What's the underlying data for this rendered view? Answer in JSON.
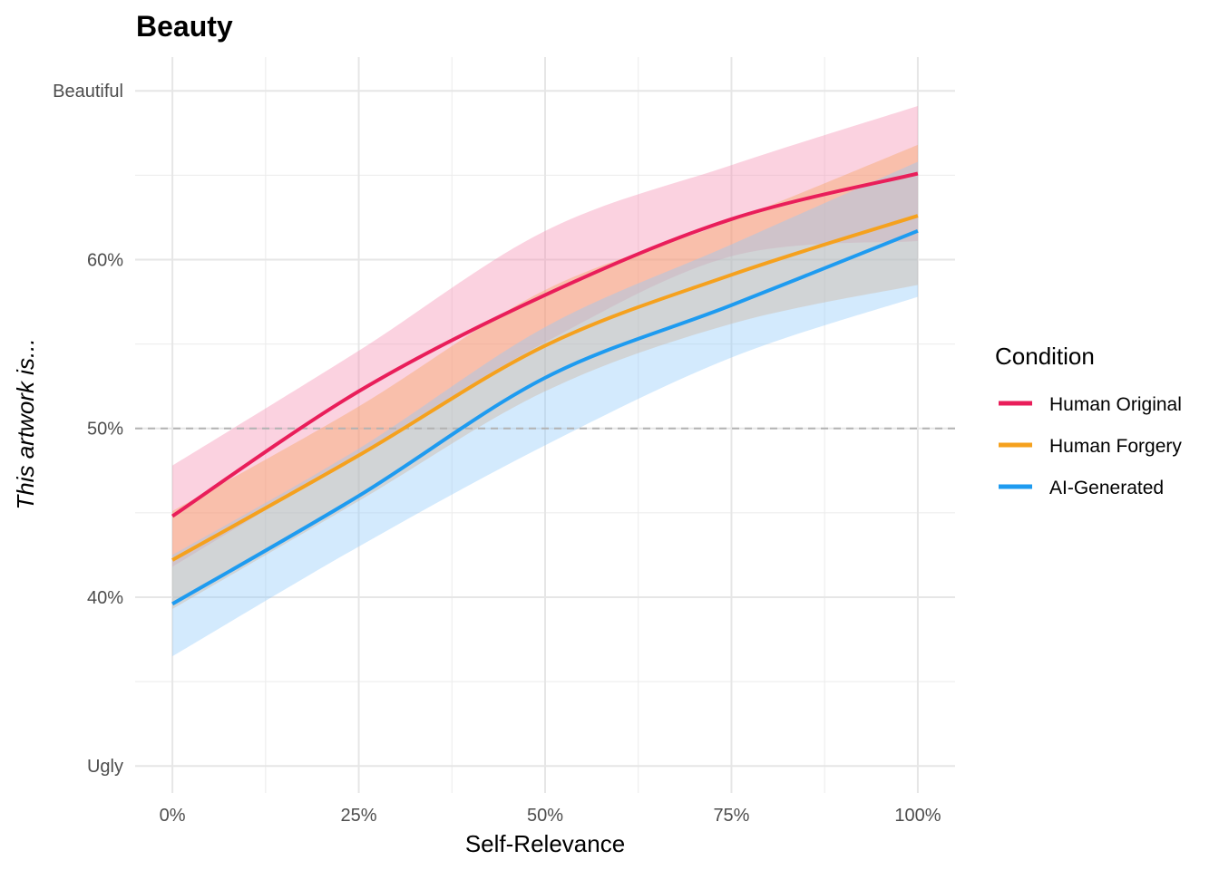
{
  "chart_data": {
    "type": "line",
    "title": "Beauty",
    "xlabel": "Self-Relevance",
    "ylabel": "This artwork is...",
    "xlim": [
      -0.05,
      1.05
    ],
    "ylim": [
      0.284,
      0.72
    ],
    "x_ticks": [
      {
        "value": 0,
        "label": "0%"
      },
      {
        "value": 0.25,
        "label": "25%"
      },
      {
        "value": 0.5,
        "label": "50%"
      },
      {
        "value": 0.75,
        "label": "75%"
      },
      {
        "value": 1.0,
        "label": "100%"
      }
    ],
    "x_minor": [
      0.125,
      0.375,
      0.625,
      0.875
    ],
    "y_ticks": [
      {
        "value": 0.3,
        "label": "Ugly"
      },
      {
        "value": 0.4,
        "label": "40%"
      },
      {
        "value": 0.5,
        "label": "50%"
      },
      {
        "value": 0.6,
        "label": "60%"
      },
      {
        "value": 0.7,
        "label": "Beautiful"
      }
    ],
    "y_minor": [
      0.35,
      0.45,
      0.55,
      0.65
    ],
    "reference_line": {
      "y": 0.5,
      "style": "dashed",
      "color": "#b3b3b3"
    },
    "grid": true,
    "legend": {
      "title": "Condition",
      "placement": "right"
    },
    "x": [
      0,
      0.25,
      0.5,
      0.75,
      1.0
    ],
    "series": [
      {
        "name": "Human Original",
        "color": "#E91E5A",
        "ribbon_color": "#F48FB1",
        "values": [
          0.448,
          0.522,
          0.579,
          0.624,
          0.651
        ],
        "lower": [
          0.418,
          0.485,
          0.551,
          0.602,
          0.611
        ],
        "upper": [
          0.478,
          0.546,
          0.617,
          0.656,
          0.691
        ]
      },
      {
        "name": "Human Forgery",
        "color": "#F5A11E",
        "ribbon_color": "#F7A35C",
        "values": [
          0.422,
          0.484,
          0.549,
          0.591,
          0.626
        ],
        "lower": [
          0.393,
          0.457,
          0.522,
          0.562,
          0.585
        ],
        "upper": [
          0.451,
          0.513,
          0.582,
          0.623,
          0.668
        ]
      },
      {
        "name": "AI-Generated",
        "color": "#1E9BF0",
        "ribbon_color": "#90CAF9",
        "values": [
          0.396,
          0.46,
          0.53,
          0.573,
          0.617
        ],
        "lower": [
          0.365,
          0.43,
          0.49,
          0.542,
          0.578
        ],
        "upper": [
          0.425,
          0.488,
          0.56,
          0.609,
          0.658
        ]
      }
    ]
  }
}
